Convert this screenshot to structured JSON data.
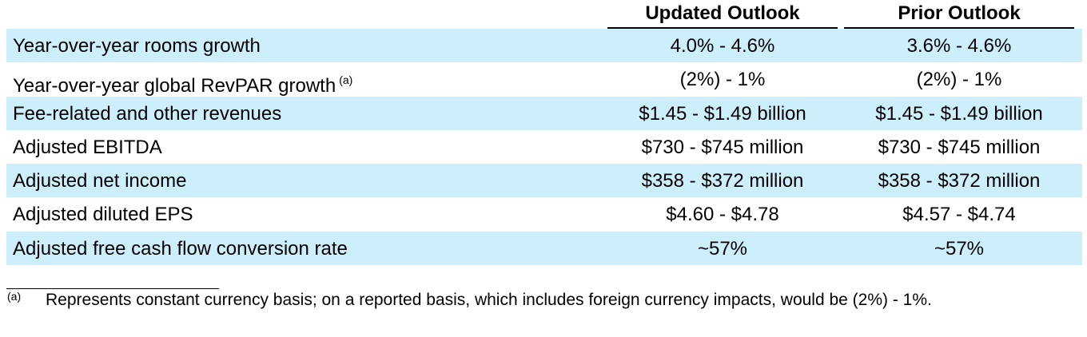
{
  "header": {
    "updated_label": "Updated Outlook",
    "prior_label": "Prior Outlook"
  },
  "rows": [
    {
      "label": "Year-over-year rooms growth",
      "updated": "4.0% - 4.6%",
      "prior": "3.6% - 4.6%"
    },
    {
      "label": "Year-over-year global RevPAR growth",
      "footnote_ref": "(a)",
      "updated": "(2%) - 1%",
      "prior": "(2%) - 1%"
    },
    {
      "label": "Fee-related and other revenues",
      "updated": "$1.45 - $1.49 billion",
      "prior": "$1.45 - $1.49 billion"
    },
    {
      "label": "Adjusted EBITDA",
      "updated": "$730 - $745 million",
      "prior": "$730 - $745 million"
    },
    {
      "label": "Adjusted net income",
      "updated": "$358 - $372 million",
      "prior": "$358 - $372 million"
    },
    {
      "label": "Adjusted diluted EPS",
      "updated": "$4.60 - $4.78",
      "prior": "$4.57 - $4.74"
    },
    {
      "label": "Adjusted free cash flow conversion rate",
      "updated": "~57%",
      "prior": "~57%"
    }
  ],
  "footnote": {
    "marker": "(a)",
    "text": "Represents constant currency basis; on a reported basis, which includes foreign currency impacts, would be (2%) - 1%."
  }
}
